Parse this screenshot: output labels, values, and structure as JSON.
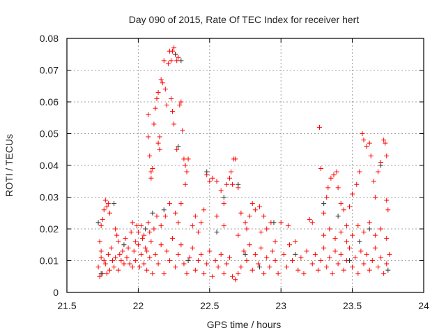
{
  "chart_data": {
    "type": "scatter",
    "title": "Day 090 of 2015, Rate Of TEC Index for receiver hert",
    "xlabel": "GPS time / hours",
    "ylabel": "ROTI / TECUs",
    "xlim": [
      21.5,
      24
    ],
    "ylim": [
      0,
      0.08
    ],
    "grid": true,
    "x_ticks": [
      "21.5",
      "22",
      "22.5",
      "23",
      "23.5",
      "24"
    ],
    "y_ticks": [
      "0",
      "0.01",
      "0.02",
      "0.03",
      "0.04",
      "0.05",
      "0.06",
      "0.07",
      "0.08"
    ],
    "series": [
      {
        "name": "red",
        "color": "#ff0000",
        "points": [
          [
            21.72,
            0.008
          ],
          [
            21.73,
            0.005
          ],
          [
            21.74,
            0.011
          ],
          [
            21.75,
            0.006
          ],
          [
            21.73,
            0.016
          ],
          [
            21.74,
            0.021
          ],
          [
            21.75,
            0.023
          ],
          [
            21.76,
            0.026
          ],
          [
            21.77,
            0.029
          ],
          [
            21.78,
            0.027
          ],
          [
            21.79,
            0.028
          ],
          [
            21.8,
            0.025
          ],
          [
            21.77,
            0.009
          ],
          [
            21.79,
            0.012
          ],
          [
            21.8,
            0.007
          ],
          [
            21.82,
            0.01
          ],
          [
            21.83,
            0.008
          ],
          [
            21.84,
            0.02
          ],
          [
            21.85,
            0.018
          ],
          [
            21.86,
            0.016
          ],
          [
            21.87,
            0.012
          ],
          [
            21.88,
            0.01
          ],
          [
            21.9,
            0.009
          ],
          [
            21.92,
            0.011
          ],
          [
            21.93,
            0.014
          ],
          [
            21.95,
            0.019
          ],
          [
            21.96,
            0.008
          ],
          [
            21.97,
            0.013
          ],
          [
            21.98,
            0.01
          ],
          [
            21.99,
            0.021
          ],
          [
            22.0,
            0.015
          ],
          [
            22.01,
            0.008
          ],
          [
            22.02,
            0.012
          ],
          [
            22.03,
            0.017
          ],
          [
            22.04,
            0.009
          ],
          [
            22.05,
            0.014
          ],
          [
            22.06,
            0.007
          ],
          [
            22.07,
            0.022
          ],
          [
            22.08,
            0.011
          ],
          [
            22.09,
            0.016
          ],
          [
            22.1,
            0.006
          ],
          [
            21.74,
            0.013
          ],
          [
            21.76,
            0.01
          ],
          [
            21.78,
            0.006
          ],
          [
            21.81,
            0.014
          ],
          [
            21.84,
            0.011
          ],
          [
            21.86,
            0.007
          ],
          [
            21.89,
            0.013
          ],
          [
            21.91,
            0.017
          ],
          [
            21.94,
            0.009
          ],
          [
            21.96,
            0.022
          ],
          [
            21.98,
            0.016
          ],
          [
            22.0,
            0.019
          ],
          [
            22.02,
            0.021
          ],
          [
            22.04,
            0.018
          ],
          [
            22.06,
            0.013
          ],
          [
            22.08,
            0.019
          ],
          [
            22.07,
            0.049
          ],
          [
            22.07,
            0.056
          ],
          [
            22.08,
            0.043
          ],
          [
            22.09,
            0.036
          ],
          [
            22.09,
            0.038
          ],
          [
            22.1,
            0.039
          ],
          [
            22.11,
            0.053
          ],
          [
            22.12,
            0.058
          ],
          [
            22.13,
            0.061
          ],
          [
            22.14,
            0.063
          ],
          [
            22.14,
            0.047
          ],
          [
            22.15,
            0.045
          ],
          [
            22.15,
            0.049
          ],
          [
            22.16,
            0.067
          ],
          [
            22.17,
            0.066
          ],
          [
            22.18,
            0.073
          ],
          [
            22.19,
            0.064
          ],
          [
            22.2,
            0.059
          ],
          [
            22.21,
            0.072
          ],
          [
            22.22,
            0.076
          ],
          [
            22.23,
            0.073
          ],
          [
            22.24,
            0.076
          ],
          [
            22.25,
            0.077
          ],
          [
            22.26,
            0.075
          ],
          [
            22.27,
            0.073
          ],
          [
            22.28,
            0.074
          ],
          [
            22.23,
            0.061
          ],
          [
            22.24,
            0.057
          ],
          [
            22.25,
            0.053
          ],
          [
            22.27,
            0.045
          ],
          [
            22.29,
            0.059
          ],
          [
            22.3,
            0.06
          ],
          [
            22.31,
            0.051
          ],
          [
            22.32,
            0.042
          ],
          [
            22.33,
            0.04
          ],
          [
            22.34,
            0.038
          ],
          [
            22.35,
            0.042
          ],
          [
            22.33,
            0.034
          ],
          [
            22.3,
            0.028
          ],
          [
            22.28,
            0.022
          ],
          [
            22.26,
            0.025
          ],
          [
            22.22,
            0.028
          ],
          [
            22.19,
            0.024
          ],
          [
            22.16,
            0.021
          ],
          [
            22.13,
            0.024
          ],
          [
            22.11,
            0.02
          ],
          [
            22.12,
            0.012
          ],
          [
            22.14,
            0.009
          ],
          [
            22.16,
            0.015
          ],
          [
            22.18,
            0.006
          ],
          [
            22.2,
            0.013
          ],
          [
            22.22,
            0.01
          ],
          [
            22.24,
            0.017
          ],
          [
            22.26,
            0.008
          ],
          [
            22.28,
            0.012
          ],
          [
            22.3,
            0.015
          ],
          [
            22.32,
            0.009
          ],
          [
            22.34,
            0.006
          ],
          [
            22.36,
            0.011
          ],
          [
            22.38,
            0.014
          ],
          [
            22.4,
            0.007
          ],
          [
            22.42,
            0.01
          ],
          [
            22.44,
            0.012
          ],
          [
            22.46,
            0.006
          ],
          [
            22.48,
            0.009
          ],
          [
            22.5,
            0.013
          ],
          [
            22.52,
            0.005
          ],
          [
            22.54,
            0.01
          ],
          [
            22.56,
            0.008
          ],
          [
            22.58,
            0.012
          ],
          [
            22.6,
            0.006
          ],
          [
            22.62,
            0.009
          ],
          [
            22.64,
            0.011
          ],
          [
            22.66,
            0.005
          ],
          [
            22.68,
            0.004
          ],
          [
            22.7,
            0.006
          ],
          [
            22.72,
            0.008
          ],
          [
            22.74,
            0.013
          ],
          [
            22.76,
            0.01
          ],
          [
            22.78,
            0.015
          ],
          [
            22.8,
            0.007
          ],
          [
            22.82,
            0.012
          ],
          [
            22.84,
            0.009
          ],
          [
            22.86,
            0.014
          ],
          [
            22.88,
            0.006
          ],
          [
            22.9,
            0.011
          ],
          [
            22.92,
            0.008
          ],
          [
            22.94,
            0.013
          ],
          [
            22.96,
            0.01
          ],
          [
            22.98,
            0.006
          ],
          [
            22.38,
            0.021
          ],
          [
            22.4,
            0.024
          ],
          [
            22.42,
            0.019
          ],
          [
            22.44,
            0.022
          ],
          [
            22.46,
            0.026
          ],
          [
            22.48,
            0.037
          ],
          [
            22.5,
            0.035
          ],
          [
            22.52,
            0.036
          ],
          [
            22.55,
            0.035
          ],
          [
            22.58,
            0.032
          ],
          [
            22.6,
            0.028
          ],
          [
            22.62,
            0.034
          ],
          [
            22.64,
            0.036
          ],
          [
            22.65,
            0.038
          ],
          [
            22.67,
            0.042
          ],
          [
            22.68,
            0.042
          ],
          [
            22.66,
            0.034
          ],
          [
            22.7,
            0.033
          ],
          [
            22.72,
            0.025
          ],
          [
            22.75,
            0.022
          ],
          [
            22.78,
            0.024
          ],
          [
            22.8,
            0.028
          ],
          [
            22.82,
            0.026
          ],
          [
            22.85,
            0.027
          ],
          [
            22.88,
            0.024
          ],
          [
            22.9,
            0.02
          ],
          [
            22.93,
            0.022
          ],
          [
            22.96,
            0.016
          ],
          [
            22.55,
            0.024
          ],
          [
            22.6,
            0.021
          ],
          [
            22.7,
            0.018
          ],
          [
            22.76,
            0.02
          ],
          [
            22.86,
            0.019
          ],
          [
            23.0,
            0.022
          ],
          [
            23.02,
            0.012
          ],
          [
            23.04,
            0.008
          ],
          [
            23.05,
            0.021
          ],
          [
            23.06,
            0.015
          ],
          [
            23.08,
            0.01
          ],
          [
            23.1,
            0.016
          ],
          [
            23.12,
            0.007
          ],
          [
            23.14,
            0.011
          ],
          [
            23.16,
            0.006
          ],
          [
            23.18,
            0.013
          ],
          [
            23.2,
            0.023
          ],
          [
            23.22,
            0.022
          ],
          [
            23.22,
            0.009
          ],
          [
            23.24,
            0.012
          ],
          [
            23.26,
            0.007
          ],
          [
            23.28,
            0.01
          ],
          [
            23.3,
            0.014
          ],
          [
            23.32,
            0.008
          ],
          [
            23.34,
            0.011
          ],
          [
            23.36,
            0.006
          ],
          [
            23.38,
            0.013
          ],
          [
            23.4,
            0.009
          ],
          [
            23.42,
            0.012
          ],
          [
            23.44,
            0.007
          ],
          [
            23.46,
            0.01
          ],
          [
            23.48,
            0.014
          ],
          [
            23.5,
            0.008
          ],
          [
            23.52,
            0.011
          ],
          [
            23.54,
            0.006
          ],
          [
            23.56,
            0.013
          ],
          [
            23.58,
            0.009
          ],
          [
            23.6,
            0.012
          ],
          [
            23.62,
            0.007
          ],
          [
            23.64,
            0.01
          ],
          [
            23.66,
            0.014
          ],
          [
            23.68,
            0.008
          ],
          [
            23.7,
            0.011
          ],
          [
            23.72,
            0.006
          ],
          [
            23.74,
            0.009
          ],
          [
            23.76,
            0.012
          ],
          [
            23.27,
            0.052
          ],
          [
            23.28,
            0.039
          ],
          [
            23.3,
            0.025
          ],
          [
            23.32,
            0.03
          ],
          [
            23.33,
            0.033
          ],
          [
            23.35,
            0.036
          ],
          [
            23.37,
            0.037
          ],
          [
            23.39,
            0.038
          ],
          [
            23.4,
            0.033
          ],
          [
            23.42,
            0.028
          ],
          [
            23.44,
            0.026
          ],
          [
            23.46,
            0.021
          ],
          [
            23.48,
            0.027
          ],
          [
            23.5,
            0.031
          ],
          [
            23.53,
            0.034
          ],
          [
            23.55,
            0.038
          ],
          [
            23.57,
            0.05
          ],
          [
            23.58,
            0.048
          ],
          [
            23.6,
            0.046
          ],
          [
            23.62,
            0.047
          ],
          [
            23.63,
            0.043
          ],
          [
            23.65,
            0.035
          ],
          [
            23.66,
            0.03
          ],
          [
            23.68,
            0.038
          ],
          [
            23.7,
            0.041
          ],
          [
            23.72,
            0.048
          ],
          [
            23.73,
            0.047
          ],
          [
            23.74,
            0.043
          ],
          [
            23.75,
            0.026
          ],
          [
            23.74,
            0.029
          ],
          [
            23.3,
            0.018
          ],
          [
            23.34,
            0.02
          ],
          [
            23.38,
            0.017
          ],
          [
            23.42,
            0.019
          ],
          [
            23.46,
            0.016
          ],
          [
            23.5,
            0.018
          ],
          [
            23.54,
            0.021
          ],
          [
            23.58,
            0.019
          ],
          [
            23.62,
            0.022
          ],
          [
            23.66,
            0.018
          ],
          [
            23.7,
            0.02
          ],
          [
            23.74,
            0.017
          ]
        ]
      },
      {
        "name": "black",
        "color": "#333333",
        "points": [
          [
            21.72,
            0.022
          ],
          [
            21.74,
            0.006
          ],
          [
            21.83,
            0.028
          ],
          [
            21.9,
            0.015
          ],
          [
            22.05,
            0.02
          ],
          [
            22.1,
            0.025
          ],
          [
            22.18,
            0.026
          ],
          [
            22.26,
            0.075
          ],
          [
            22.28,
            0.046
          ],
          [
            22.3,
            0.073
          ],
          [
            22.35,
            0.01
          ],
          [
            22.48,
            0.038
          ],
          [
            22.55,
            0.019
          ],
          [
            22.6,
            0.03
          ],
          [
            22.7,
            0.034
          ],
          [
            22.75,
            0.012
          ],
          [
            22.85,
            0.008
          ],
          [
            22.95,
            0.022
          ],
          [
            23.1,
            0.012
          ],
          [
            23.3,
            0.028
          ],
          [
            23.4,
            0.024
          ],
          [
            23.48,
            0.01
          ],
          [
            23.55,
            0.016
          ],
          [
            23.62,
            0.02
          ],
          [
            23.7,
            0.04
          ],
          [
            23.75,
            0.007
          ]
        ]
      }
    ]
  }
}
